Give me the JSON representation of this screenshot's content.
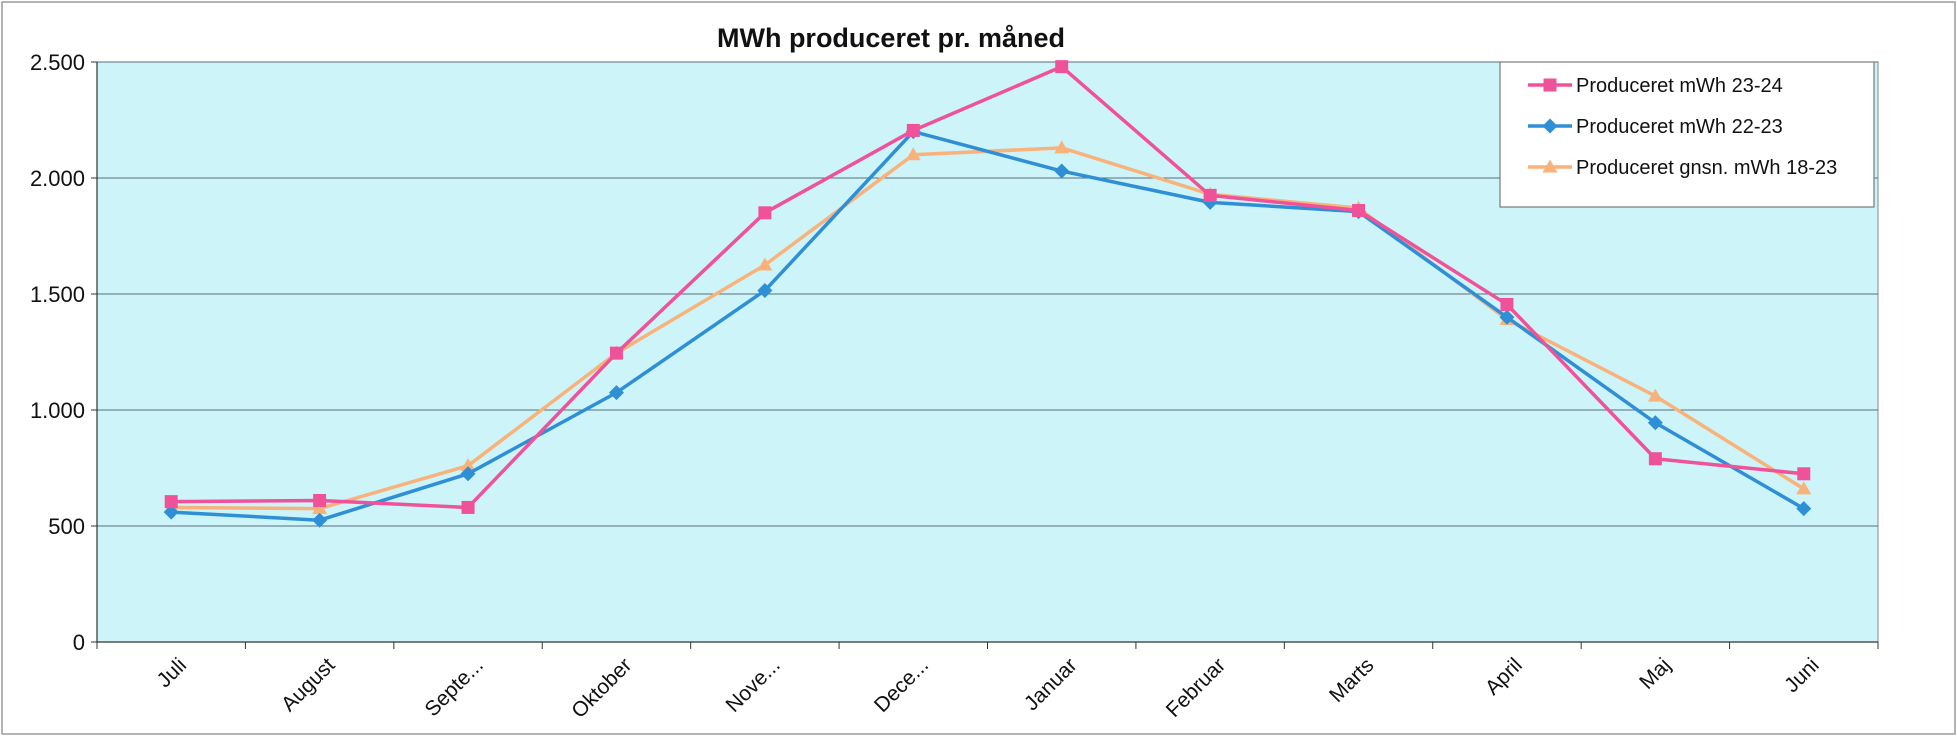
{
  "chart_data": {
    "type": "line",
    "title": "MWh produceret pr. måned",
    "xlabel": "",
    "ylabel": "",
    "categories": [
      "Juli",
      "August",
      "Septe...",
      "Oktober",
      "Nove...",
      "Dece...",
      "Januar",
      "Februar",
      "Marts",
      "April",
      "Maj",
      "Juni"
    ],
    "ylim": [
      0,
      2500
    ],
    "yticks": [
      0,
      500,
      1000,
      1500,
      2000,
      2500
    ],
    "ytick_labels": [
      "0",
      "500",
      "1.000",
      "1.500",
      "2.000",
      "2.500"
    ],
    "grid": true,
    "legend_position": "top-right",
    "plot_background": "#ccf4f9",
    "series": [
      {
        "name": "Produceret mWh 23-24",
        "color": "#f0529a",
        "marker": "square",
        "values": [
          605,
          610,
          580,
          1245,
          1850,
          2205,
          2480,
          1925,
          1860,
          1455,
          790,
          725
        ]
      },
      {
        "name": "Produceret mWh 22-23",
        "color": "#2f8fd6",
        "marker": "diamond",
        "values": [
          560,
          525,
          725,
          1075,
          1515,
          2200,
          2030,
          1895,
          1855,
          1400,
          945,
          575
        ]
      },
      {
        "name": "Produceret gnsn. mWh 18-23",
        "color": "#f9b27a",
        "marker": "triangle",
        "values": [
          580,
          575,
          760,
          1245,
          1625,
          2100,
          2130,
          1930,
          1870,
          1390,
          1060,
          660
        ]
      }
    ]
  }
}
